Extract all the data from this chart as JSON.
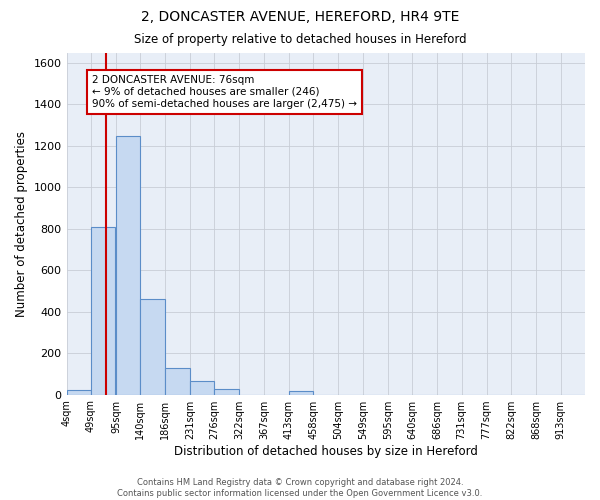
{
  "title": "2, DONCASTER AVENUE, HEREFORD, HR4 9TE",
  "subtitle": "Size of property relative to detached houses in Hereford",
  "xlabel": "Distribution of detached houses by size in Hereford",
  "ylabel": "Number of detached properties",
  "bin_labels": [
    "4sqm",
    "49sqm",
    "95sqm",
    "140sqm",
    "186sqm",
    "231sqm",
    "276sqm",
    "322sqm",
    "367sqm",
    "413sqm",
    "458sqm",
    "504sqm",
    "549sqm",
    "595sqm",
    "640sqm",
    "686sqm",
    "731sqm",
    "777sqm",
    "822sqm",
    "868sqm",
    "913sqm"
  ],
  "bar_values": [
    20,
    810,
    1245,
    460,
    130,
    65,
    25,
    0,
    0,
    15,
    0,
    0,
    0,
    0,
    0,
    0,
    0,
    0,
    0,
    0,
    0
  ],
  "bar_color": "#c6d9f1",
  "bar_edge_color": "#5b8dc8",
  "bar_edge_width": 0.8,
  "grid_color": "#c8cdd6",
  "background_color": "#e8eef7",
  "ylim": [
    0,
    1650
  ],
  "yticks": [
    0,
    200,
    400,
    600,
    800,
    1000,
    1200,
    1400,
    1600
  ],
  "vline_color": "#cc0000",
  "annotation_text": "2 DONCASTER AVENUE: 76sqm\n← 9% of detached houses are smaller (246)\n90% of semi-detached houses are larger (2,475) →",
  "annotation_box_color": "#ffffff",
  "annotation_box_edge_color": "#cc0000",
  "footer_text": "Contains HM Land Registry data © Crown copyright and database right 2024.\nContains public sector information licensed under the Open Government Licence v3.0.",
  "bin_edges": [
    4,
    49,
    95,
    140,
    186,
    231,
    276,
    322,
    367,
    413,
    458,
    504,
    549,
    595,
    640,
    686,
    731,
    777,
    822,
    868,
    913
  ],
  "vline_x": 76
}
